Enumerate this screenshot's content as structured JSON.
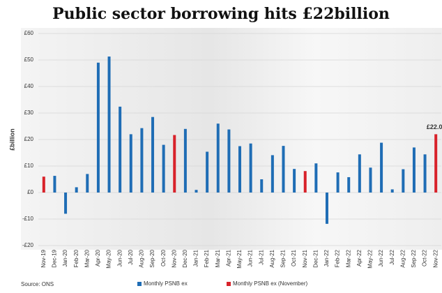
{
  "chart_data": {
    "type": "bar",
    "title": "Public sector borrowing hits £22billion",
    "y_label": "£billion",
    "source": "Source: ONS",
    "categories": [
      "Nov-19",
      "Dec-19",
      "Jan-20",
      "Feb-20",
      "Mar-20",
      "Apr-20",
      "May-20",
      "Jun-20",
      "Jul-20",
      "Aug-20",
      "Sep-20",
      "Oct-20",
      "Nov-20",
      "Dec-20",
      "Jan-21",
      "Feb-21",
      "Mar-21",
      "Apr-21",
      "May-21",
      "Jun-21",
      "Jul-21",
      "Aug-21",
      "Sep-21",
      "Oct-21",
      "Nov-21",
      "Dec-21",
      "Jan-22",
      "Feb-22",
      "Mar-22",
      "Apr-22",
      "May-22",
      "Jun-22",
      "Jul-22",
      "Aug-22",
      "Sep-22",
      "Oct-22",
      "Nov-22"
    ],
    "series": [
      {
        "name": "Monthly PSNB ex",
        "color": "#1f6db5",
        "values": [
          null,
          6.3,
          -8,
          2,
          7,
          49,
          51.3,
          32.4,
          22,
          24.3,
          28.5,
          18,
          null,
          24,
          1,
          15.4,
          26,
          23.8,
          17.5,
          18.5,
          5,
          14.1,
          17.6,
          8.9,
          null,
          11,
          -11.8,
          7.6,
          5.8,
          14.4,
          9.4,
          18.8,
          1.2,
          8.8,
          17,
          14.4,
          null
        ]
      },
      {
        "name": "Monthly PSNB ex (November)",
        "color": "#d8222a",
        "values": [
          6,
          null,
          null,
          null,
          null,
          null,
          null,
          null,
          null,
          null,
          null,
          null,
          21.7,
          null,
          null,
          null,
          null,
          null,
          null,
          null,
          null,
          null,
          null,
          null,
          8.1,
          null,
          null,
          null,
          null,
          null,
          null,
          null,
          null,
          null,
          null,
          null,
          22
        ],
        "value_labels": [
          null,
          null,
          null,
          null,
          null,
          null,
          null,
          null,
          null,
          null,
          null,
          null,
          null,
          null,
          null,
          null,
          null,
          null,
          null,
          null,
          null,
          null,
          null,
          null,
          null,
          null,
          null,
          null,
          null,
          null,
          null,
          null,
          null,
          null,
          null,
          null,
          "£22.0"
        ]
      }
    ],
    "ylim": [
      -20,
      60
    ],
    "yticks": [
      {
        "value": -20,
        "label": "-£20"
      },
      {
        "value": -10,
        "label": "-£10"
      },
      {
        "value": 0,
        "label": "£0"
      },
      {
        "value": 10,
        "label": "£10"
      },
      {
        "value": 20,
        "label": "£20"
      },
      {
        "value": 30,
        "label": "£30"
      },
      {
        "value": 40,
        "label": "£40"
      },
      {
        "value": 50,
        "label": "£50"
      },
      {
        "value": 60,
        "label": "£60"
      }
    ],
    "grid": true
  }
}
